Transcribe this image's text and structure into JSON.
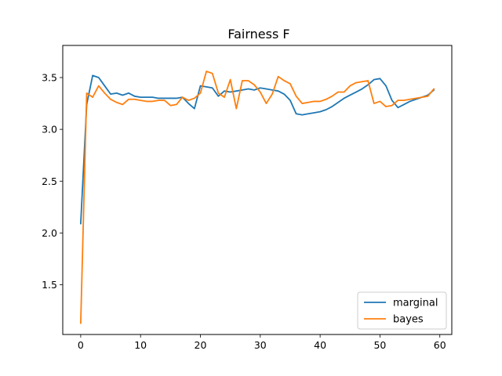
{
  "chart_data": {
    "type": "line",
    "title": "Fairness F",
    "xlabel": "",
    "ylabel": "",
    "xlim": [
      -3,
      62
    ],
    "ylim": [
      1.02,
      3.81
    ],
    "xticks": [
      0,
      10,
      20,
      30,
      40,
      50,
      60
    ],
    "yticks": [
      1.5,
      2.0,
      2.5,
      3.0,
      3.5
    ],
    "ytick_labels": [
      "1.5",
      "2.0",
      "2.5",
      "3.0",
      "3.5"
    ],
    "grid": false,
    "legend_position": "lower-right",
    "series": [
      {
        "name": "marginal",
        "color": "#1f77b4",
        "x": [
          0,
          1,
          2,
          3,
          4,
          5,
          6,
          7,
          8,
          9,
          10,
          11,
          12,
          13,
          14,
          15,
          16,
          17,
          18,
          19,
          20,
          21,
          22,
          23,
          24,
          25,
          26,
          27,
          28,
          29,
          30,
          31,
          32,
          33,
          34,
          35,
          36,
          37,
          38,
          39,
          40,
          41,
          42,
          43,
          44,
          45,
          46,
          47,
          48,
          49,
          50,
          51,
          52,
          53,
          54,
          55,
          56,
          57,
          58,
          59
        ],
        "y": [
          2.09,
          3.24,
          3.52,
          3.5,
          3.42,
          3.34,
          3.35,
          3.33,
          3.35,
          3.32,
          3.31,
          3.31,
          3.31,
          3.3,
          3.3,
          3.3,
          3.3,
          3.31,
          3.25,
          3.2,
          3.42,
          3.41,
          3.4,
          3.32,
          3.37,
          3.36,
          3.37,
          3.38,
          3.39,
          3.38,
          3.4,
          3.39,
          3.38,
          3.37,
          3.34,
          3.28,
          3.15,
          3.14,
          3.15,
          3.16,
          3.17,
          3.19,
          3.22,
          3.26,
          3.3,
          3.33,
          3.36,
          3.39,
          3.43,
          3.48,
          3.49,
          3.42,
          3.28,
          3.21,
          3.24,
          3.27,
          3.29,
          3.31,
          3.33,
          3.38
        ]
      },
      {
        "name": "bayes",
        "color": "#ff7f0e",
        "x": [
          0,
          1,
          2,
          3,
          4,
          5,
          6,
          7,
          8,
          9,
          10,
          11,
          12,
          13,
          14,
          15,
          16,
          17,
          18,
          19,
          20,
          21,
          22,
          23,
          24,
          25,
          26,
          27,
          28,
          29,
          30,
          31,
          32,
          33,
          34,
          35,
          36,
          37,
          38,
          39,
          40,
          41,
          42,
          43,
          44,
          45,
          46,
          47,
          48,
          49,
          50,
          51,
          52,
          53,
          54,
          55,
          56,
          57,
          58,
          59
        ],
        "y": [
          1.13,
          3.35,
          3.31,
          3.42,
          3.35,
          3.29,
          3.26,
          3.24,
          3.29,
          3.29,
          3.28,
          3.27,
          3.27,
          3.28,
          3.28,
          3.23,
          3.24,
          3.31,
          3.28,
          3.3,
          3.35,
          3.56,
          3.54,
          3.35,
          3.31,
          3.48,
          3.2,
          3.47,
          3.47,
          3.43,
          3.36,
          3.25,
          3.34,
          3.51,
          3.47,
          3.44,
          3.32,
          3.25,
          3.26,
          3.27,
          3.27,
          3.29,
          3.32,
          3.36,
          3.36,
          3.42,
          3.45,
          3.46,
          3.47,
          3.25,
          3.27,
          3.22,
          3.23,
          3.28,
          3.28,
          3.29,
          3.3,
          3.31,
          3.32,
          3.39
        ]
      }
    ]
  }
}
